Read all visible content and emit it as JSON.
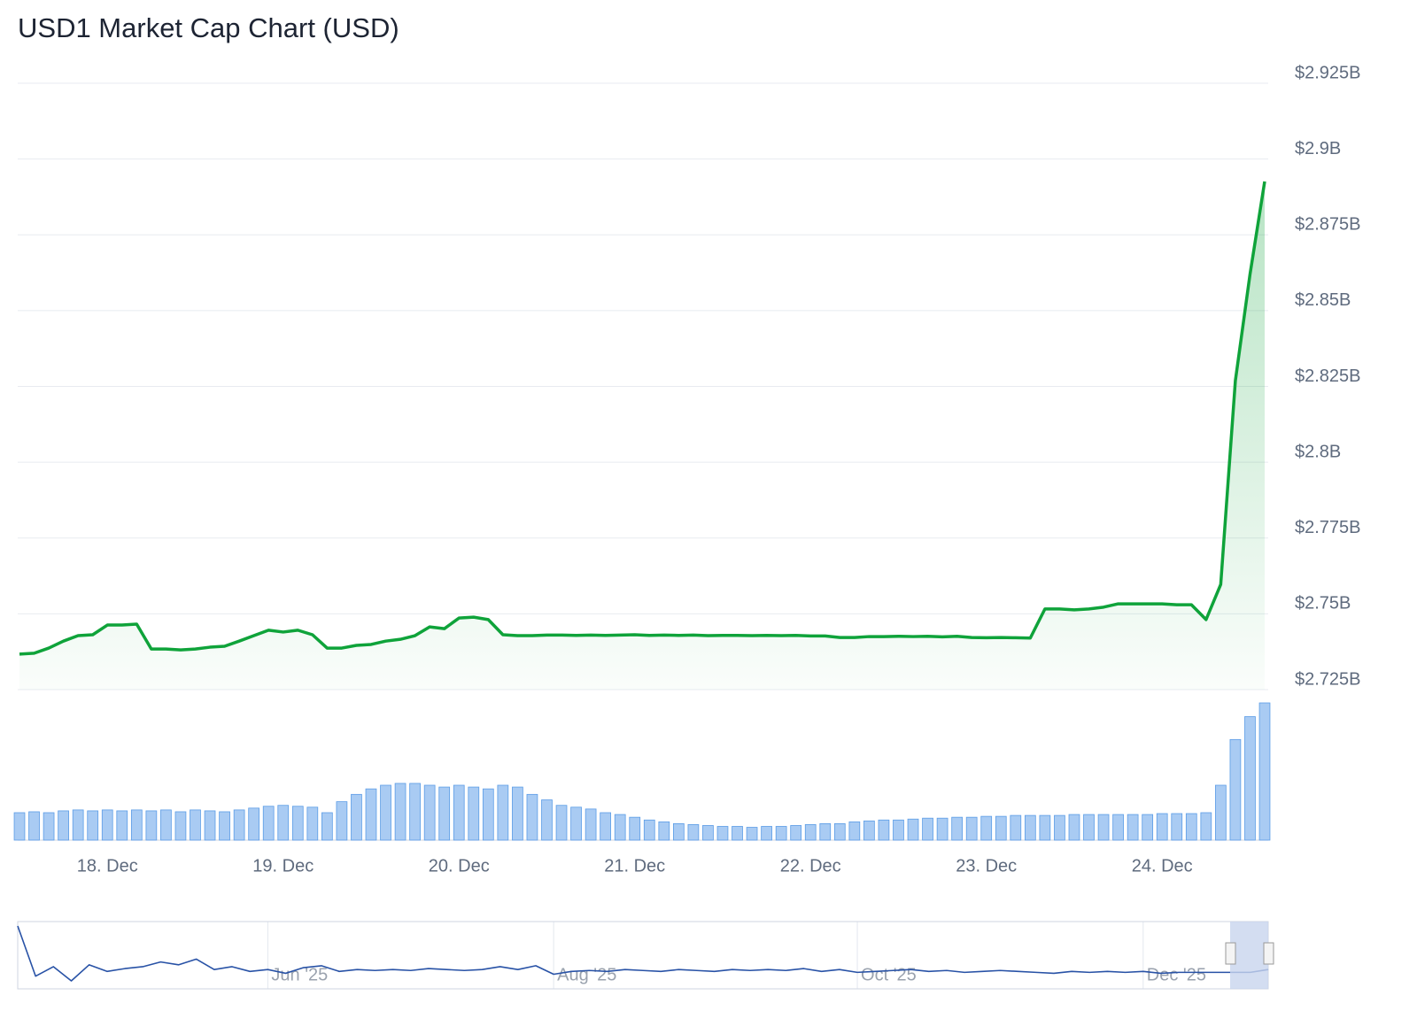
{
  "chart_data": [
    {
      "type": "line",
      "title": "USD1 Market Cap Chart (USD)",
      "categories": [
        null,
        null,
        null,
        null,
        null,
        null,
        "18. Dec",
        null,
        null,
        null,
        null,
        null,
        null,
        null,
        null,
        null,
        null,
        null,
        "19. Dec",
        null,
        null,
        null,
        null,
        null,
        null,
        null,
        null,
        null,
        null,
        null,
        "20. Dec",
        null,
        null,
        null,
        null,
        null,
        null,
        null,
        null,
        null,
        null,
        null,
        "21. Dec",
        null,
        null,
        null,
        null,
        null,
        null,
        null,
        null,
        null,
        null,
        null,
        "22. Dec",
        null,
        null,
        null,
        null,
        null,
        null,
        null,
        null,
        null,
        null,
        null,
        "23. Dec",
        null,
        null,
        null,
        null,
        null,
        null,
        null,
        null,
        null,
        null,
        null,
        "24. Dec",
        null,
        null,
        null,
        null,
        null,
        null,
        null
      ],
      "values": [
        2736700000,
        2737000000,
        2738700000,
        2741000000,
        2742800000,
        2743100000,
        2746300000,
        2746300000,
        2746600000,
        2738400000,
        2738400000,
        2738100000,
        2738400000,
        2739000000,
        2739300000,
        2741000000,
        2742800000,
        2744600000,
        2744000000,
        2744600000,
        2743100000,
        2738700000,
        2738700000,
        2739600000,
        2739900000,
        2741000000,
        2741600000,
        2742800000,
        2745700000,
        2745100000,
        2748600000,
        2748900000,
        2748100000,
        2743100000,
        2742800000,
        2742800000,
        2743000000,
        2743000000,
        2742900000,
        2743000000,
        2742900000,
        2743000000,
        2743100000,
        2742900000,
        2743000000,
        2742900000,
        2743000000,
        2742800000,
        2742900000,
        2742900000,
        2742800000,
        2742900000,
        2742800000,
        2742900000,
        2742700000,
        2742700000,
        2742200000,
        2742200000,
        2742500000,
        2742500000,
        2742600000,
        2742500000,
        2742600000,
        2742400000,
        2742600000,
        2742200000,
        2742100000,
        2742200000,
        2742100000,
        2742000000,
        2751600000,
        2751600000,
        2751300000,
        2751600000,
        2752200000,
        2753300000,
        2753300000,
        2753300000,
        2753300000,
        2753000000,
        2753000000,
        2748100000,
        2759700000,
        2826900000,
        2862000000,
        2892600000
      ],
      "color": "#0fa33a",
      "volume": {
        "values": [
          30,
          31,
          30,
          32,
          33,
          32,
          33,
          32,
          33,
          32,
          33,
          31,
          33,
          32,
          31,
          33,
          35,
          37,
          38,
          37,
          36,
          30,
          42,
          50,
          56,
          60,
          62,
          62,
          60,
          58,
          60,
          58,
          56,
          60,
          58,
          50,
          44,
          38,
          36,
          34,
          30,
          28,
          25,
          22,
          20,
          18,
          17,
          16,
          15,
          15,
          14,
          15,
          15,
          16,
          17,
          18,
          18,
          20,
          21,
          22,
          22,
          23,
          24,
          24,
          25,
          25,
          26,
          26,
          27,
          27,
          27,
          27,
          28,
          28,
          28,
          28,
          28,
          28,
          29,
          29,
          29,
          30,
          60,
          110,
          135,
          150
        ],
        "color": "#a9cbf3"
      },
      "ylim": [
        2725000000,
        2925000000
      ],
      "yticks": [
        {
          "value": 2725000000,
          "label": "$2.725B"
        },
        {
          "value": 2750000000,
          "label": "$2.75B"
        },
        {
          "value": 2775000000,
          "label": "$2.775B"
        },
        {
          "value": 2800000000,
          "label": "$2.8B"
        },
        {
          "value": 2825000000,
          "label": "$2.825B"
        },
        {
          "value": 2850000000,
          "label": "$2.85B"
        },
        {
          "value": 2875000000,
          "label": "$2.875B"
        },
        {
          "value": 2900000000,
          "label": "$2.9B"
        },
        {
          "value": 2925000000,
          "label": "$2.925B"
        }
      ],
      "grid": true
    },
    {
      "type": "line",
      "categories": [
        null,
        null,
        null,
        null,
        null,
        null,
        null,
        null,
        null,
        null,
        null,
        null,
        null,
        null,
        "Jun '25",
        null,
        null,
        null,
        null,
        null,
        null,
        null,
        null,
        null,
        null,
        null,
        null,
        null,
        null,
        null,
        "Aug '25",
        null,
        null,
        null,
        null,
        null,
        null,
        null,
        null,
        null,
        null,
        null,
        null,
        null,
        null,
        null,
        null,
        "Oct '25",
        null,
        null,
        null,
        null,
        null,
        null,
        null,
        null,
        null,
        null,
        null,
        null,
        null,
        null,
        null,
        "Dec '25",
        null,
        null,
        null,
        null,
        null,
        null,
        null
      ],
      "values": [
        70,
        17,
        27,
        12,
        29,
        22,
        25,
        27,
        32,
        29,
        35,
        24,
        27,
        22,
        24,
        20,
        26,
        28,
        22,
        24,
        23,
        24,
        23,
        25,
        24,
        23,
        24,
        27,
        24,
        28,
        19,
        22,
        23,
        22,
        24,
        23,
        22,
        24,
        23,
        22,
        24,
        23,
        24,
        23,
        25,
        22,
        24,
        21,
        22,
        23,
        24,
        22,
        23,
        21,
        22,
        23,
        22,
        21,
        20,
        22,
        21,
        22,
        21,
        22,
        20,
        21,
        21,
        21,
        21,
        21,
        24
      ],
      "color": "#2852a6"
    }
  ]
}
